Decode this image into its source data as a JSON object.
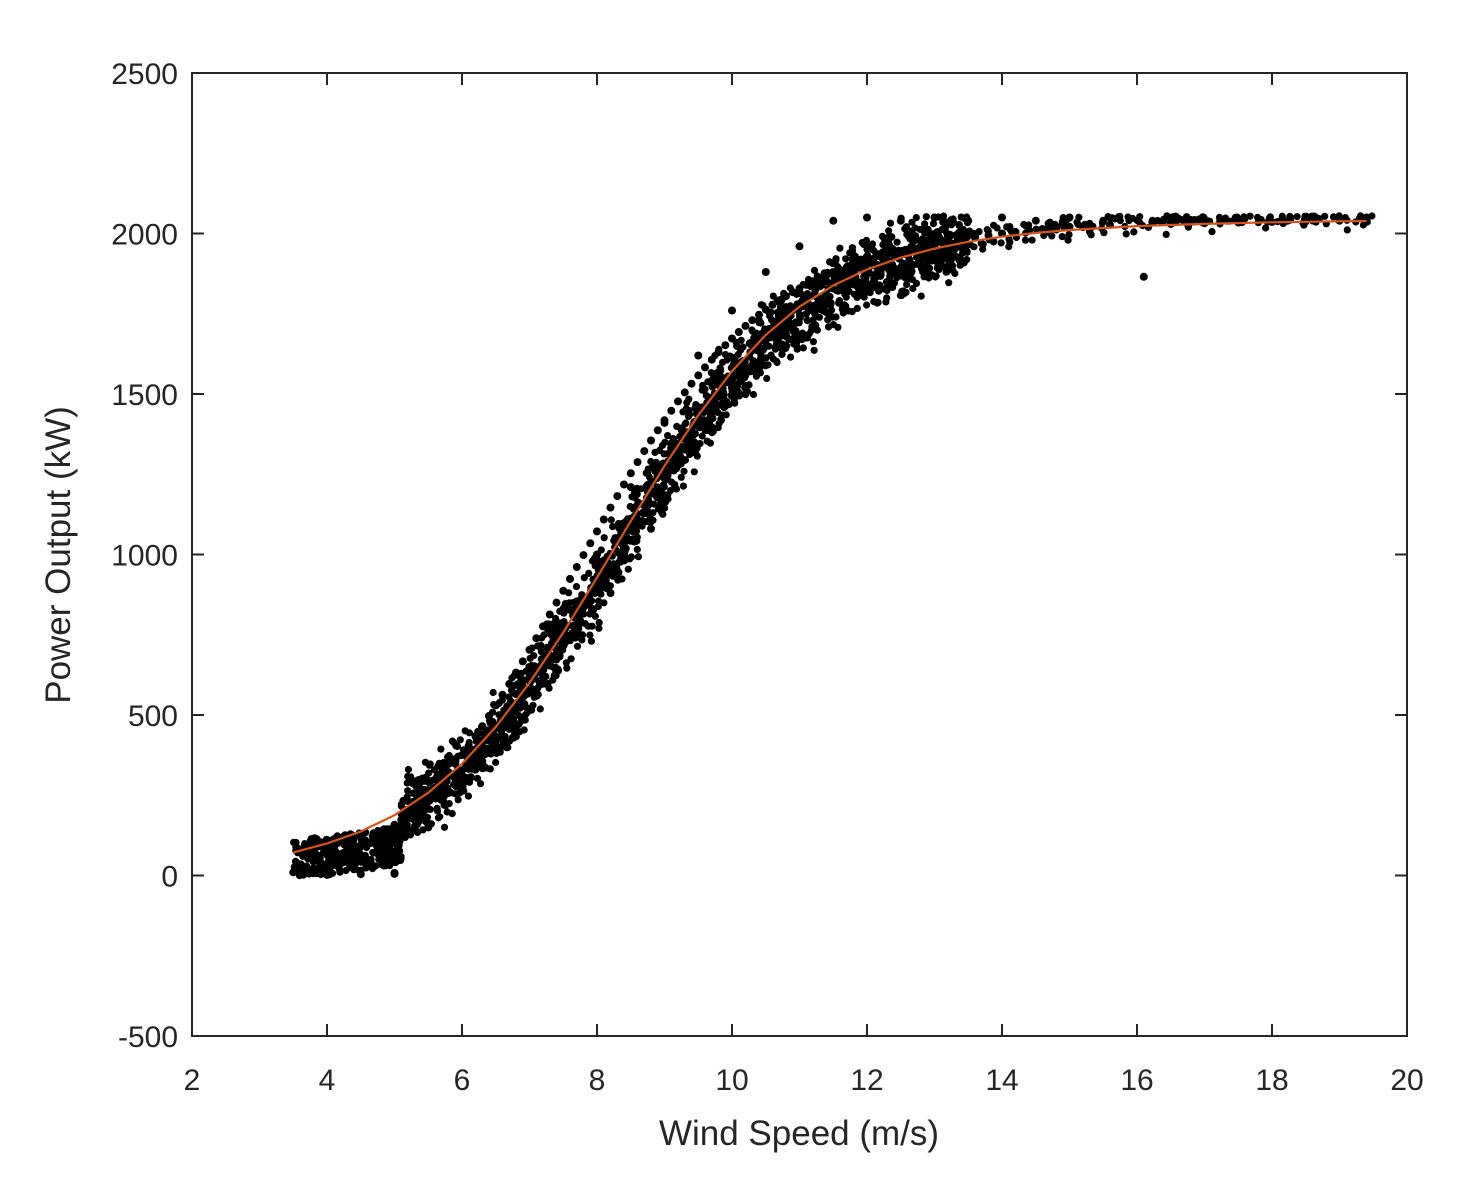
{
  "chart_data": {
    "type": "scatter",
    "title": "",
    "xlabel": "Wind Speed (m/s)",
    "ylabel": "Power Output (kW)",
    "xlim": [
      2,
      20
    ],
    "ylim": [
      -500,
      2500
    ],
    "xticks": [
      2,
      4,
      6,
      8,
      10,
      12,
      14,
      16,
      18,
      20
    ],
    "yticks": [
      -500,
      0,
      500,
      1000,
      1500,
      2000,
      2500
    ],
    "xtick_labels": [
      "2",
      "4",
      "6",
      "8",
      "10",
      "12",
      "14",
      "16",
      "18",
      "20"
    ],
    "ytick_labels": [
      "-500",
      "0",
      "500",
      "1000",
      "1500",
      "2000",
      "2500"
    ],
    "grid": false,
    "legend": "none",
    "series": [
      {
        "type": "scatter",
        "color": "#000000",
        "x": [
          3.5,
          3.6,
          3.7,
          3.8,
          3.9,
          4.0,
          4.1,
          4.2,
          4.3,
          4.4,
          4.5,
          4.6,
          4.7,
          4.8,
          4.9,
          5.0,
          5.0,
          5.1,
          5.2,
          5.3,
          5.4,
          5.5,
          5.6,
          5.7,
          5.8,
          5.9,
          6.0,
          6.1,
          6.2,
          6.3,
          6.4,
          6.5,
          6.6,
          6.7,
          6.8,
          6.9,
          7.0,
          7.1,
          7.2,
          7.3,
          7.4,
          7.5,
          7.6,
          7.7,
          7.8,
          7.9,
          8.0,
          8.1,
          8.2,
          8.3,
          8.4,
          8.5,
          8.6,
          8.7,
          8.8,
          8.9,
          9.0,
          9.1,
          9.2,
          9.3,
          9.4,
          9.5,
          9.6,
          9.7,
          9.8,
          9.9,
          10.0,
          10.1,
          10.2,
          10.3,
          10.4,
          10.5,
          10.6,
          10.7,
          10.8,
          10.9,
          11.0,
          11.1,
          11.2,
          11.3,
          11.4,
          11.5,
          11.6,
          11.7,
          11.8,
          11.9,
          12.0,
          12.1,
          12.2,
          12.3,
          12.4,
          12.5,
          12.6,
          12.7,
          12.8,
          12.9,
          13.0,
          13.2,
          13.4,
          13.6,
          13.8,
          14.0,
          14.2,
          14.4,
          14.6,
          14.8,
          15.0,
          15.3,
          15.6,
          16.1,
          16.5,
          17.0,
          17.5,
          18.0,
          18.5,
          19.0,
          19.4,
          4.0,
          4.5,
          5.0,
          5.5,
          6.0,
          6.5,
          7.0,
          7.5,
          8.0,
          8.5,
          9.0,
          9.5,
          10.0,
          10.5,
          11.0,
          11.5,
          12.0,
          12.5,
          13.0,
          13.5,
          14.0,
          14.5,
          15.0,
          15.5,
          3.6,
          4.2,
          4.8,
          5.4,
          6.2,
          6.8,
          7.4,
          8.2,
          8.8,
          9.4,
          10.2,
          10.8,
          11.4,
          12.2,
          12.8,
          13.6,
          14.4,
          15.2
        ],
        "y": [
          10,
          14,
          18,
          22,
          28,
          36,
          45,
          55,
          66,
          78,
          90,
          103,
          116,
          130,
          144,
          5,
          158,
          173,
          190,
          208,
          228,
          250,
          273,
          297,
          322,
          348,
          375,
          404,
          434,
          465,
          497,
          530,
          563,
          597,
          632,
          667,
          703,
          739,
          776,
          813,
          850,
          887,
          924,
          961,
          998,
          1035,
          1072,
          1109,
          1146,
          1182,
          1218,
          1253,
          1288,
          1322,
          1355,
          1387,
          1418,
          1448,
          1477,
          1505,
          1532,
          1558,
          1583,
          1607,
          1630,
          1652,
          1673,
          1693,
          1712,
          1730,
          1747,
          1763,
          1778,
          1792,
          1805,
          1817,
          1829,
          1840,
          1851,
          1861,
          1870,
          1879,
          1887,
          1895,
          1902,
          1909,
          1916,
          1922,
          1928,
          1934,
          1939,
          1944,
          1949,
          1954,
          1958,
          1962,
          1966,
          1974,
          1981,
          1988,
          1994,
          2000,
          2005,
          2010,
          2014,
          2018,
          2021,
          2024,
          2027,
          1865,
          2030,
          2032,
          2034,
          2036,
          2038,
          2040,
          2042,
          2,
          4,
          8,
          150,
          290,
          420,
          620,
          830,
          1000,
          1210,
          1410,
          1620,
          1760,
          1880,
          1960,
          2040,
          2050,
          2040,
          2050,
          2040,
          2050,
          2040,
          2050,
          2040,
          30,
          60,
          90,
          180,
          330,
          470,
          690,
          880,
          1080,
          1320,
          1500,
          1680,
          1810,
          1900,
          1960,
          1990,
          2010,
          2020
        ]
      },
      {
        "type": "line",
        "color": "#D95319",
        "x": [
          3.5,
          4.0,
          4.5,
          5.0,
          5.5,
          6.0,
          6.5,
          7.0,
          7.5,
          8.0,
          8.5,
          9.0,
          9.5,
          10.0,
          10.5,
          11.0,
          11.5,
          12.0,
          12.5,
          13.0,
          13.5,
          14.0,
          14.5,
          15.0,
          16.0,
          17.0,
          18.0,
          19.0,
          19.4
        ],
        "y": [
          72,
          100,
          137,
          188,
          258,
          348,
          463,
          600,
          757,
          928,
          1104,
          1276,
          1434,
          1571,
          1684,
          1772,
          1838,
          1888,
          1925,
          1953,
          1974,
          1990,
          2002,
          2011,
          2023,
          2030,
          2035,
          2038,
          2039
        ]
      }
    ]
  }
}
